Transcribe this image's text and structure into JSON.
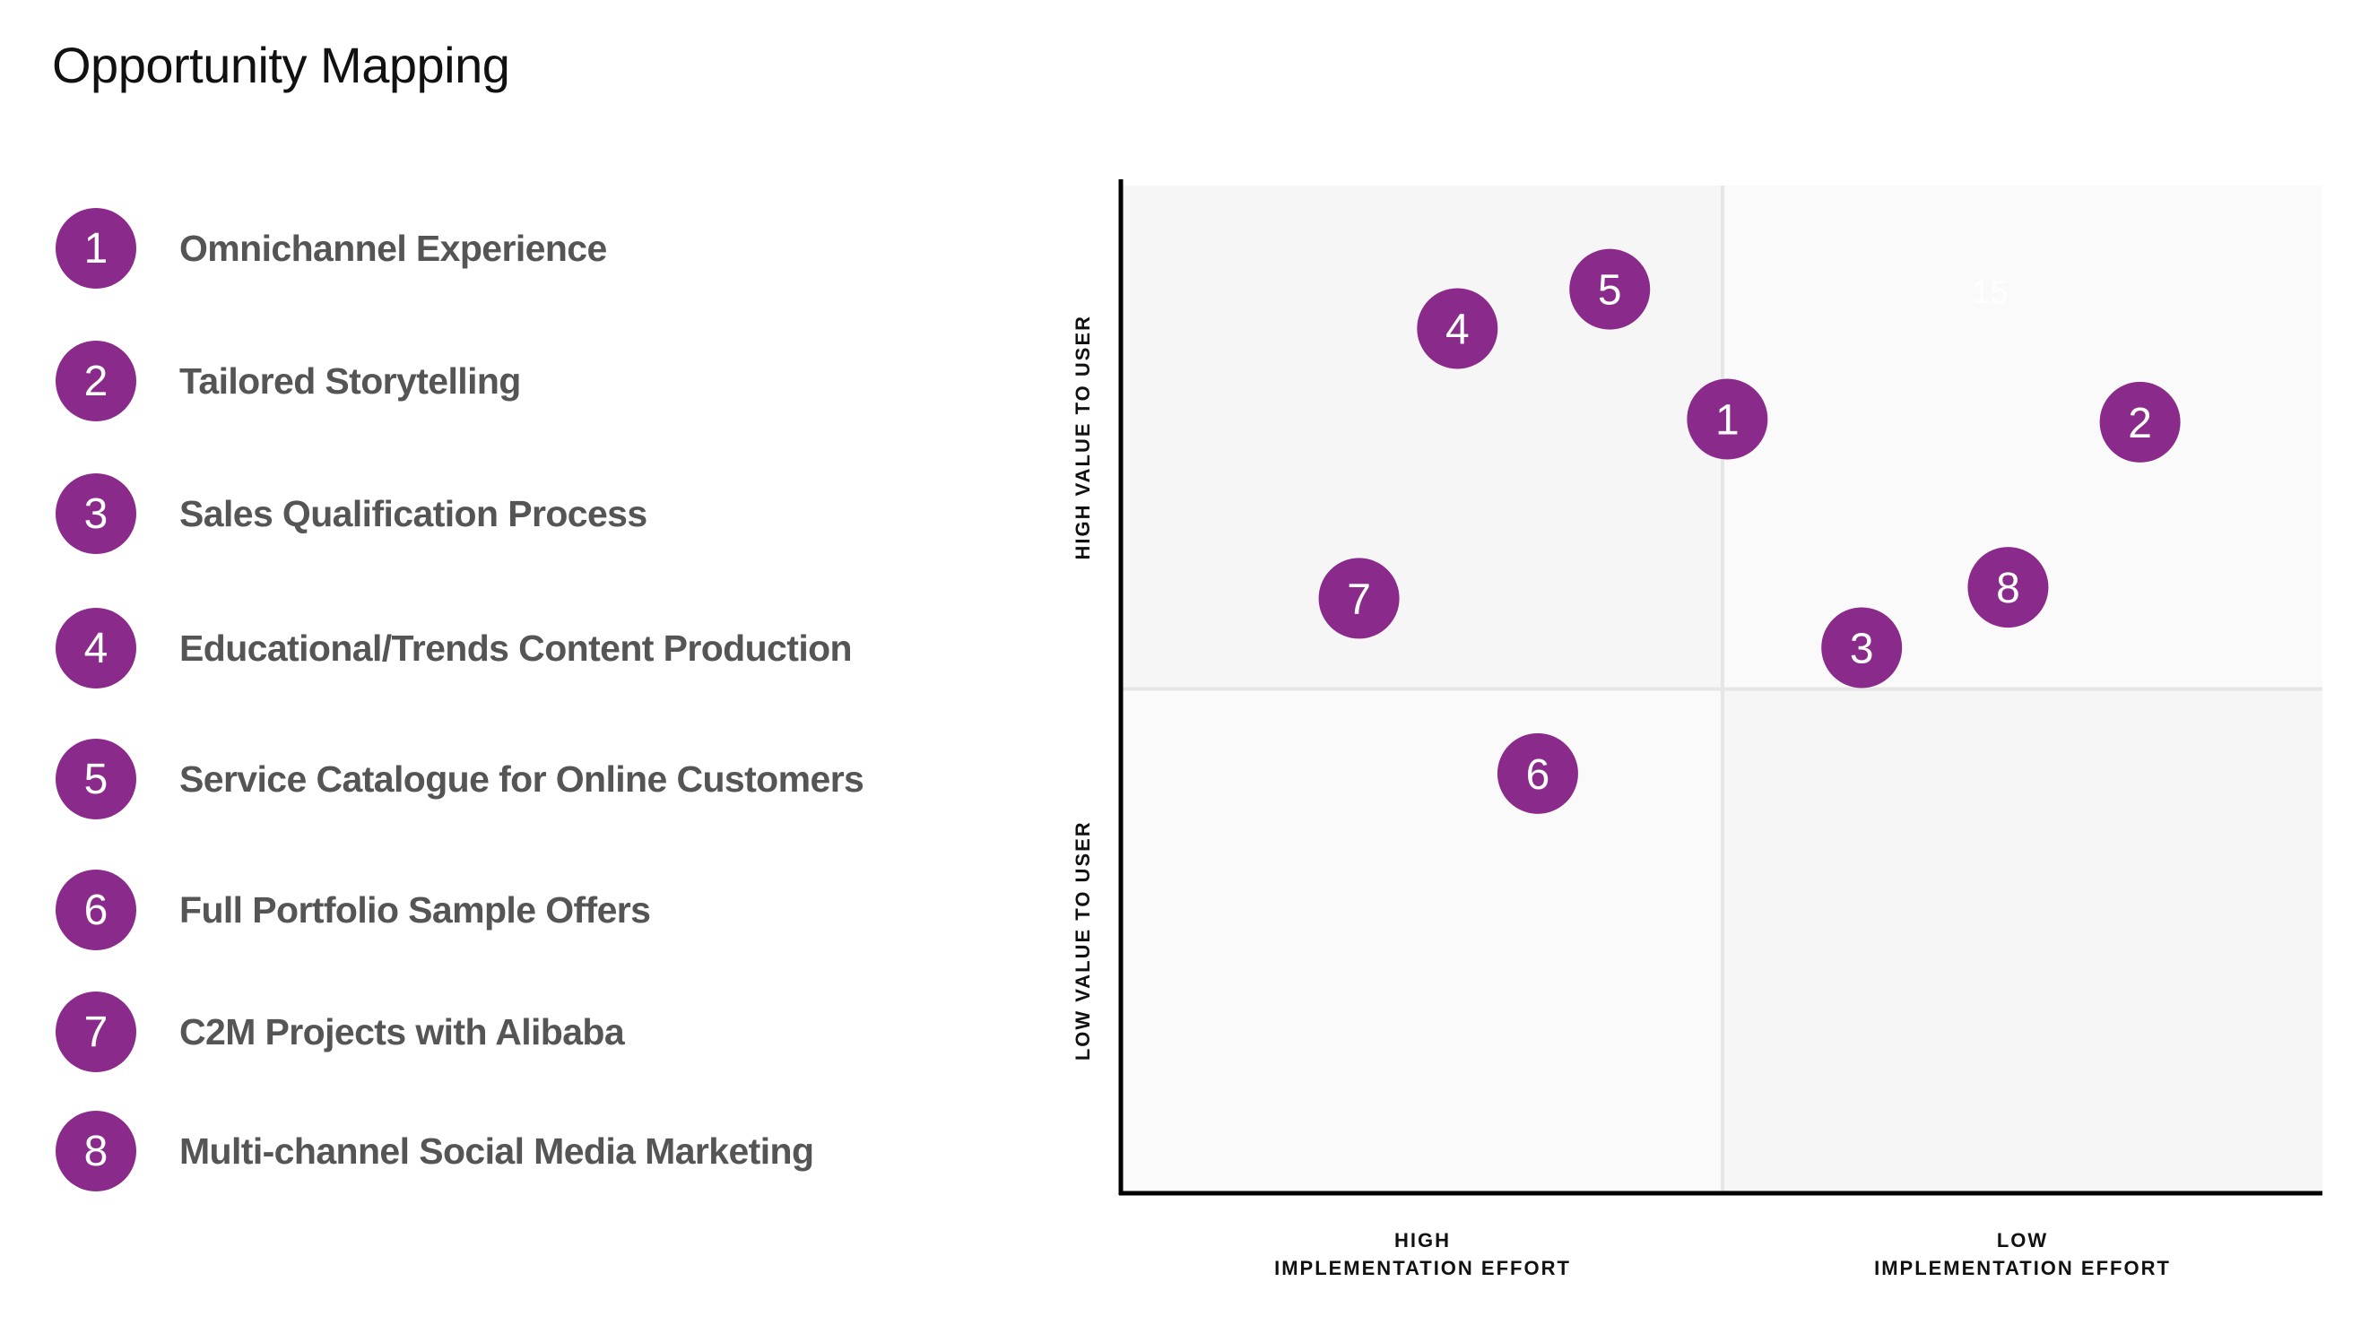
{
  "page": {
    "title": "Opportunity Mapping"
  },
  "legend": {
    "items": [
      {
        "number": "1",
        "label": "Omnichannel Experience"
      },
      {
        "number": "2",
        "label": "Tailored Storytelling"
      },
      {
        "number": "3",
        "label": "Sales Qualification Process"
      },
      {
        "number": "4",
        "label": "Educational/Trends Content Production"
      },
      {
        "number": "5",
        "label": "Service Catalogue for Online Customers"
      },
      {
        "number": "6",
        "label": "Full Portfolio Sample Offers"
      },
      {
        "number": "7",
        "label": "C2M Projects with Alibaba"
      },
      {
        "number": "8",
        "label": "Multi-channel Social Media Marketing"
      }
    ]
  },
  "colors": {
    "marker": "#8a2a8a",
    "quadrant_dark": "#f6f6f6",
    "quadrant_light": "#fafafa",
    "divider": "#e6e6e6",
    "axis": "#000000",
    "legend_text": "#555555"
  },
  "chart_data": {
    "type": "scatter",
    "title": "Opportunity Mapping",
    "xlabel": "Implementation Effort",
    "ylabel": "Value to User",
    "xlim": [
      0,
      100
    ],
    "ylim": [
      0,
      100
    ],
    "x_direction_note": "left = high effort, right = low effort",
    "x_tick_labels": [
      {
        "position": 25,
        "lines": [
          "HIGH",
          "IMPLEMENTATION EFFORT"
        ]
      },
      {
        "position": 75,
        "lines": [
          "LOW",
          "IMPLEMENTATION EFFORT"
        ]
      }
    ],
    "y_tick_labels": [
      {
        "position": 75,
        "text": "HIGH VALUE TO USER"
      },
      {
        "position": 25,
        "text": "LOW VALUE TO USER"
      }
    ],
    "quadrant_dividers": {
      "x": 50,
      "y": 50
    },
    "grid": false,
    "legend_position": "left",
    "points": [
      {
        "id": "1",
        "name": "Omnichannel Experience",
        "x": 50.4,
        "y": 76.8
      },
      {
        "id": "2",
        "name": "Tailored Storytelling",
        "x": 84.8,
        "y": 76.5
      },
      {
        "id": "3",
        "name": "Sales Qualification Process",
        "x": 61.6,
        "y": 54.1
      },
      {
        "id": "4",
        "name": "Educational/Trends Content Production",
        "x": 27.9,
        "y": 85.8
      },
      {
        "id": "5",
        "name": "Service Catalogue for Online Customers",
        "x": 40.6,
        "y": 89.7
      },
      {
        "id": "6",
        "name": "Full Portfolio Sample Offers",
        "x": 34.6,
        "y": 41.6
      },
      {
        "id": "7",
        "name": "C2M Projects with Alibaba",
        "x": 19.7,
        "y": 59.0
      },
      {
        "id": "8",
        "name": "Multi-channel Social Media Marketing",
        "x": 73.8,
        "y": 60.1
      }
    ],
    "annotations": [
      {
        "text": "15",
        "x": 72.3,
        "y": 89.5,
        "note": "faint white text"
      }
    ]
  }
}
